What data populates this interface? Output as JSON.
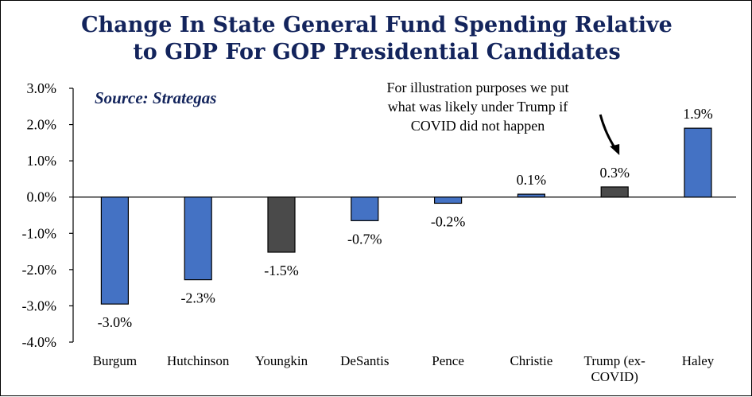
{
  "title": {
    "line1": "Change In State General Fund Spending Relative",
    "line2": "to GDP For GOP  Presidential Candidates"
  },
  "source": "Source: Strategas",
  "annotation": {
    "lines": [
      "For illustration purposes we put",
      "what was likely under Trump if",
      "COVID did not happen"
    ],
    "points_to": "Trump (ex-COVID)"
  },
  "colors": {
    "blue": "#4472c4",
    "gray": "#4a4a4a",
    "title": "#13245c"
  },
  "chart_data": {
    "type": "bar",
    "categories": [
      [
        "Burgum"
      ],
      [
        "Hutchinson"
      ],
      [
        "Youngkin"
      ],
      [
        "DeSantis"
      ],
      [
        "Pence"
      ],
      [
        "Christie"
      ],
      [
        "Trump (ex-",
        "COVID)"
      ],
      [
        "Haley"
      ]
    ],
    "values": [
      -3.0,
      -2.3,
      -1.5,
      -0.7,
      -0.2,
      0.1,
      0.3,
      1.9
    ],
    "plotted_values": [
      -2.95,
      -2.28,
      -1.52,
      -0.65,
      -0.17,
      0.08,
      0.28,
      1.9
    ],
    "labels": [
      "-3.0%",
      "-2.3%",
      "-1.5%",
      "-0.7%",
      "-0.2%",
      "0.1%",
      "0.3%",
      "1.9%"
    ],
    "bar_colors": [
      "blue",
      "blue",
      "gray",
      "blue",
      "blue",
      "blue",
      "gray",
      "blue"
    ],
    "ylim": [
      -4.0,
      3.0
    ],
    "yticks": [
      3.0,
      2.0,
      1.0,
      0.0,
      -1.0,
      -2.0,
      -3.0,
      -4.0
    ],
    "ytick_labels": [
      "3.0%",
      "2.0%",
      "1.0%",
      "0.0%",
      "-1.0%",
      "-2.0%",
      "-3.0%",
      "-4.0%"
    ],
    "grid": false,
    "legend": "none"
  }
}
